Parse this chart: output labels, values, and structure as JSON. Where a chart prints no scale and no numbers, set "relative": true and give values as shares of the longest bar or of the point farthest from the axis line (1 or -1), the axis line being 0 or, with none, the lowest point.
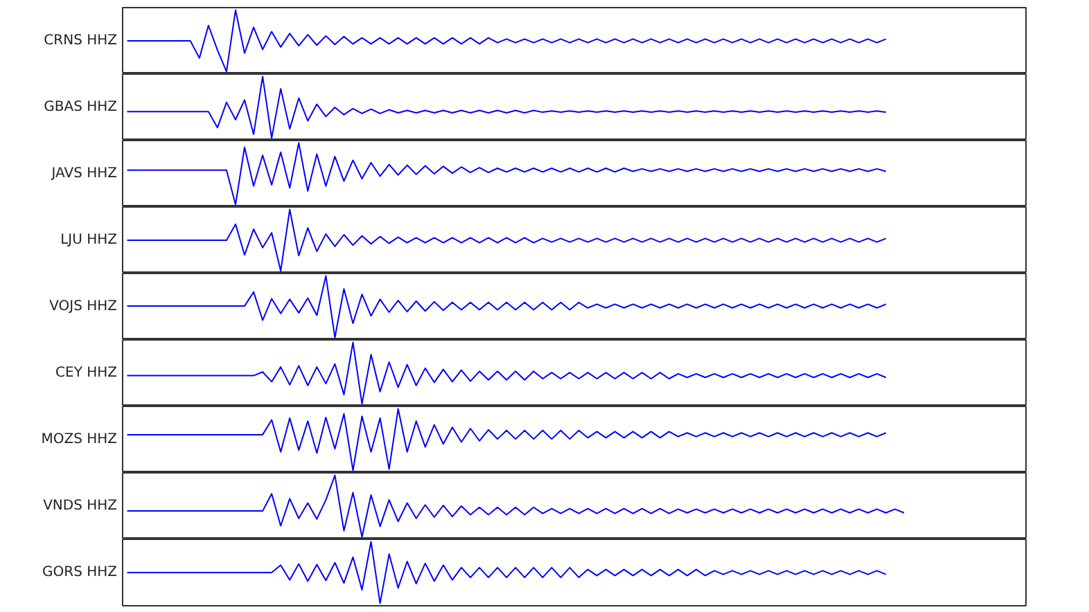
{
  "chart_data": [
    {
      "type": "line",
      "ylabel": "CRNS HHZ",
      "relative": true,
      "color": "#0000ff",
      "categories": [
        null,
        null,
        null,
        null,
        null,
        null,
        null,
        null,
        null,
        null,
        null,
        null,
        null,
        null,
        null,
        null,
        null,
        null,
        null,
        null,
        null,
        null,
        null,
        null,
        null,
        null,
        null,
        null,
        null,
        null,
        null,
        null,
        null,
        null,
        null,
        null,
        null,
        null,
        null,
        null,
        null,
        null,
        null,
        null,
        null,
        null,
        null,
        null,
        null,
        null,
        null,
        null,
        null,
        null,
        null,
        null,
        null,
        null,
        null,
        null,
        null,
        null,
        null,
        null,
        null,
        null,
        null,
        null,
        null,
        null,
        null,
        null,
        null,
        null,
        null,
        null,
        null,
        null,
        null,
        null,
        null,
        null,
        null,
        null,
        null,
        null,
        null,
        null,
        null,
        null,
        null,
        null,
        null,
        null,
        null,
        null,
        null,
        null,
        null,
        null
      ],
      "values": [
        0.5,
        0.5,
        0.5,
        0.5,
        0.5,
        0.5,
        0.5,
        0.5,
        0.22,
        0.75,
        0.35,
        0,
        1,
        0.3,
        0.72,
        0.36,
        0.65,
        0.4,
        0.62,
        0.42,
        0.6,
        0.43,
        0.58,
        0.44,
        0.57,
        0.45,
        0.55,
        0.45,
        0.55,
        0.45,
        0.55,
        0.45,
        0.55,
        0.45,
        0.55,
        0.45,
        0.55,
        0.45,
        0.55,
        0.45,
        0.55,
        0.47,
        0.53,
        0.47,
        0.53,
        0.47,
        0.53,
        0.47,
        0.53,
        0.47,
        0.53,
        0.47,
        0.53,
        0.47,
        0.53,
        0.47,
        0.53,
        0.47,
        0.53,
        0.47,
        0.53,
        0.47,
        0.53,
        0.47,
        0.53,
        0.47,
        0.53,
        0.47,
        0.53,
        0.47,
        0.53,
        0.47,
        0.53,
        0.47,
        0.53,
        0.47,
        0.53,
        0.47,
        0.53,
        0.47,
        0.53,
        0.47,
        0.53,
        0.47,
        0.53,
        null,
        null,
        null,
        null,
        null,
        null,
        null,
        null,
        null,
        null,
        null,
        null,
        null,
        null,
        null
      ]
    },
    {
      "type": "line",
      "ylabel": "GBAS HHZ",
      "relative": true,
      "color": "#0000ff",
      "categories": [
        null,
        null,
        null,
        null,
        null,
        null,
        null,
        null,
        null,
        null,
        null,
        null,
        null,
        null,
        null,
        null,
        null,
        null,
        null,
        null,
        null,
        null,
        null,
        null,
        null,
        null,
        null,
        null,
        null,
        null,
        null,
        null,
        null,
        null,
        null,
        null,
        null,
        null,
        null,
        null,
        null,
        null,
        null,
        null,
        null,
        null,
        null,
        null,
        null,
        null,
        null,
        null,
        null,
        null,
        null,
        null,
        null,
        null,
        null,
        null,
        null,
        null,
        null,
        null,
        null,
        null,
        null,
        null,
        null,
        null,
        null,
        null,
        null,
        null,
        null,
        null,
        null,
        null,
        null,
        null,
        null,
        null,
        null,
        null,
        null,
        null,
        null,
        null,
        null,
        null,
        null,
        null,
        null,
        null,
        null,
        null,
        null,
        null,
        null,
        null
      ],
      "values": [
        0.43,
        0.43,
        0.43,
        0.43,
        0.43,
        0.43,
        0.43,
        0.43,
        0.43,
        0.43,
        0.17,
        0.58,
        0.3,
        0.62,
        0.06,
        1,
        0,
        0.8,
        0.15,
        0.65,
        0.28,
        0.55,
        0.35,
        0.5,
        0.38,
        0.48,
        0.4,
        0.47,
        0.4,
        0.46,
        0.41,
        0.45,
        0.41,
        0.45,
        0.41,
        0.45,
        0.41,
        0.45,
        0.41,
        0.45,
        0.41,
        0.45,
        0.41,
        0.45,
        0.41,
        0.45,
        0.42,
        0.44,
        0.42,
        0.44,
        0.42,
        0.44,
        0.42,
        0.44,
        0.42,
        0.44,
        0.42,
        0.44,
        0.42,
        0.44,
        0.42,
        0.44,
        0.42,
        0.44,
        0.42,
        0.44,
        0.42,
        0.44,
        0.42,
        0.44,
        0.42,
        0.44,
        0.42,
        0.44,
        0.42,
        0.44,
        0.42,
        0.44,
        0.42,
        0.44,
        0.42,
        0.44,
        0.42,
        0.44,
        0.42,
        null,
        null,
        null,
        null,
        null,
        null,
        null,
        null,
        null,
        null,
        null,
        null,
        null,
        null,
        null
      ]
    },
    {
      "type": "line",
      "ylabel": "JAVS HHZ",
      "relative": true,
      "color": "#0000ff",
      "categories": [
        null,
        null,
        null,
        null,
        null,
        null,
        null,
        null,
        null,
        null,
        null,
        null,
        null,
        null,
        null,
        null,
        null,
        null,
        null,
        null,
        null,
        null,
        null,
        null,
        null,
        null,
        null,
        null,
        null,
        null,
        null,
        null,
        null,
        null,
        null,
        null,
        null,
        null,
        null,
        null,
        null,
        null,
        null,
        null,
        null,
        null,
        null,
        null,
        null,
        null,
        null,
        null,
        null,
        null,
        null,
        null,
        null,
        null,
        null,
        null,
        null,
        null,
        null,
        null,
        null,
        null,
        null,
        null,
        null,
        null,
        null,
        null,
        null,
        null,
        null,
        null,
        null,
        null,
        null,
        null,
        null,
        null,
        null,
        null,
        null,
        null,
        null,
        null,
        null,
        null,
        null,
        null,
        null,
        null,
        null,
        null,
        null,
        null,
        null,
        null
      ],
      "values": [
        0.56,
        0.56,
        0.56,
        0.56,
        0.56,
        0.56,
        0.56,
        0.56,
        0.56,
        0.56,
        0.56,
        0.56,
        0,
        0.93,
        0.3,
        0.8,
        0.32,
        0.85,
        0.27,
        1,
        0.22,
        0.82,
        0.3,
        0.78,
        0.38,
        0.72,
        0.42,
        0.68,
        0.46,
        0.65,
        0.48,
        0.64,
        0.49,
        0.63,
        0.5,
        0.62,
        0.51,
        0.61,
        0.52,
        0.6,
        0.52,
        0.59,
        0.53,
        0.59,
        0.53,
        0.59,
        0.53,
        0.59,
        0.53,
        0.59,
        0.53,
        0.59,
        0.53,
        0.59,
        0.53,
        0.59,
        0.54,
        0.58,
        0.54,
        0.58,
        0.54,
        0.58,
        0.54,
        0.58,
        0.54,
        0.58,
        0.54,
        0.58,
        0.54,
        0.58,
        0.54,
        0.58,
        0.54,
        0.58,
        0.54,
        0.58,
        0.54,
        0.58,
        0.54,
        0.58,
        0.54,
        0.58,
        0.54,
        0.58,
        0.54,
        null,
        null,
        null,
        null,
        null,
        null,
        null,
        null,
        null,
        null,
        null,
        null,
        null,
        null,
        null
      ]
    },
    {
      "type": "line",
      "ylabel": "LJU HHZ",
      "relative": true,
      "color": "#0000ff",
      "categories": [
        null,
        null,
        null,
        null,
        null,
        null,
        null,
        null,
        null,
        null,
        null,
        null,
        null,
        null,
        null,
        null,
        null,
        null,
        null,
        null,
        null,
        null,
        null,
        null,
        null,
        null,
        null,
        null,
        null,
        null,
        null,
        null,
        null,
        null,
        null,
        null,
        null,
        null,
        null,
        null,
        null,
        null,
        null,
        null,
        null,
        null,
        null,
        null,
        null,
        null,
        null,
        null,
        null,
        null,
        null,
        null,
        null,
        null,
        null,
        null,
        null,
        null,
        null,
        null,
        null,
        null,
        null,
        null,
        null,
        null,
        null,
        null,
        null,
        null,
        null,
        null,
        null,
        null,
        null,
        null,
        null,
        null,
        null,
        null,
        null,
        null,
        null,
        null,
        null,
        null,
        null,
        null,
        null,
        null,
        null,
        null,
        null,
        null,
        null,
        null
      ],
      "values": [
        0.5,
        0.5,
        0.5,
        0.5,
        0.5,
        0.5,
        0.5,
        0.5,
        0.5,
        0.5,
        0.5,
        0.5,
        0.76,
        0.26,
        0.68,
        0.38,
        0.62,
        0,
        1,
        0.25,
        0.7,
        0.32,
        0.6,
        0.4,
        0.59,
        0.42,
        0.57,
        0.44,
        0.56,
        0.45,
        0.55,
        0.46,
        0.54,
        0.46,
        0.54,
        0.46,
        0.54,
        0.46,
        0.54,
        0.46,
        0.54,
        0.46,
        0.54,
        0.46,
        0.54,
        0.46,
        0.53,
        0.47,
        0.53,
        0.47,
        0.53,
        0.47,
        0.53,
        0.47,
        0.53,
        0.47,
        0.53,
        0.47,
        0.53,
        0.47,
        0.53,
        0.47,
        0.53,
        0.47,
        0.53,
        0.47,
        0.53,
        0.47,
        0.53,
        0.47,
        0.53,
        0.47,
        0.53,
        0.47,
        0.53,
        0.47,
        0.53,
        0.47,
        0.53,
        0.47,
        0.53,
        0.47,
        0.53,
        0.47,
        0.53,
        null,
        null,
        null,
        null,
        null,
        null,
        null,
        null,
        null,
        null,
        null,
        null,
        null,
        null,
        null
      ]
    },
    {
      "type": "line",
      "ylabel": "VOJS HHZ",
      "relative": true,
      "color": "#0000ff",
      "categories": [
        null,
        null,
        null,
        null,
        null,
        null,
        null,
        null,
        null,
        null,
        null,
        null,
        null,
        null,
        null,
        null,
        null,
        null,
        null,
        null,
        null,
        null,
        null,
        null,
        null,
        null,
        null,
        null,
        null,
        null,
        null,
        null,
        null,
        null,
        null,
        null,
        null,
        null,
        null,
        null,
        null,
        null,
        null,
        null,
        null,
        null,
        null,
        null,
        null,
        null,
        null,
        null,
        null,
        null,
        null,
        null,
        null,
        null,
        null,
        null,
        null,
        null,
        null,
        null,
        null,
        null,
        null,
        null,
        null,
        null,
        null,
        null,
        null,
        null,
        null,
        null,
        null,
        null,
        null,
        null,
        null,
        null,
        null,
        null,
        null,
        null,
        null,
        null,
        null,
        null,
        null,
        null,
        null,
        null,
        null,
        null,
        null,
        null,
        null,
        null
      ],
      "values": [
        0.51,
        0.51,
        0.51,
        0.51,
        0.51,
        0.51,
        0.51,
        0.51,
        0.51,
        0.51,
        0.51,
        0.51,
        0.51,
        0.51,
        0.74,
        0.28,
        0.63,
        0.39,
        0.62,
        0.4,
        0.64,
        0.36,
        1,
        0,
        0.79,
        0.23,
        0.7,
        0.35,
        0.62,
        0.41,
        0.6,
        0.42,
        0.59,
        0.43,
        0.58,
        0.44,
        0.57,
        0.45,
        0.57,
        0.45,
        0.57,
        0.45,
        0.57,
        0.45,
        0.57,
        0.45,
        0.57,
        0.45,
        0.57,
        0.45,
        0.57,
        0.48,
        0.54,
        0.48,
        0.54,
        0.48,
        0.54,
        0.48,
        0.54,
        0.48,
        0.54,
        0.48,
        0.54,
        0.48,
        0.54,
        0.48,
        0.54,
        0.48,
        0.54,
        0.48,
        0.54,
        0.48,
        0.54,
        0.48,
        0.54,
        0.48,
        0.54,
        0.48,
        0.54,
        0.48,
        0.54,
        0.48,
        0.54,
        0.48,
        0.54,
        null,
        null,
        null,
        null,
        null,
        null,
        null,
        null,
        null,
        null,
        null,
        null,
        null,
        null,
        null
      ]
    },
    {
      "type": "line",
      "ylabel": "CEY HHZ",
      "relative": true,
      "color": "#0000ff",
      "categories": [
        null,
        null,
        null,
        null,
        null,
        null,
        null,
        null,
        null,
        null,
        null,
        null,
        null,
        null,
        null,
        null,
        null,
        null,
        null,
        null,
        null,
        null,
        null,
        null,
        null,
        null,
        null,
        null,
        null,
        null,
        null,
        null,
        null,
        null,
        null,
        null,
        null,
        null,
        null,
        null,
        null,
        null,
        null,
        null,
        null,
        null,
        null,
        null,
        null,
        null,
        null,
        null,
        null,
        null,
        null,
        null,
        null,
        null,
        null,
        null,
        null,
        null,
        null,
        null,
        null,
        null,
        null,
        null,
        null,
        null,
        null,
        null,
        null,
        null,
        null,
        null,
        null,
        null,
        null,
        null,
        null,
        null,
        null,
        null,
        null,
        null,
        null,
        null,
        null,
        null,
        null,
        null,
        null,
        null,
        null,
        null,
        null,
        null,
        null,
        null
      ],
      "values": [
        0.46,
        0.46,
        0.46,
        0.46,
        0.46,
        0.46,
        0.46,
        0.46,
        0.46,
        0.46,
        0.46,
        0.46,
        0.46,
        0.46,
        0.46,
        0.52,
        0.36,
        0.6,
        0.31,
        0.62,
        0.3,
        0.6,
        0.33,
        0.65,
        0.15,
        1,
        0,
        0.8,
        0.2,
        0.68,
        0.27,
        0.64,
        0.3,
        0.58,
        0.35,
        0.56,
        0.36,
        0.55,
        0.37,
        0.53,
        0.39,
        0.53,
        0.39,
        0.53,
        0.39,
        0.53,
        0.41,
        0.51,
        0.41,
        0.51,
        0.41,
        0.51,
        0.41,
        0.51,
        0.41,
        0.51,
        0.41,
        0.51,
        0.41,
        0.51,
        0.41,
        0.49,
        0.43,
        0.49,
        0.43,
        0.49,
        0.43,
        0.49,
        0.43,
        0.49,
        0.43,
        0.49,
        0.43,
        0.49,
        0.43,
        0.49,
        0.43,
        0.49,
        0.43,
        0.49,
        0.43,
        0.49,
        0.43,
        0.49,
        0.43,
        null,
        null,
        null,
        null,
        null,
        null,
        null,
        null,
        null,
        null,
        null,
        null,
        null,
        null,
        null
      ]
    },
    {
      "type": "line",
      "ylabel": "MOZS HHZ",
      "relative": true,
      "color": "#0000ff",
      "categories": [
        null,
        null,
        null,
        null,
        null,
        null,
        null,
        null,
        null,
        null,
        null,
        null,
        null,
        null,
        null,
        null,
        null,
        null,
        null,
        null,
        null,
        null,
        null,
        null,
        null,
        null,
        null,
        null,
        null,
        null,
        null,
        null,
        null,
        null,
        null,
        null,
        null,
        null,
        null,
        null,
        null,
        null,
        null,
        null,
        null,
        null,
        null,
        null,
        null,
        null,
        null,
        null,
        null,
        null,
        null,
        null,
        null,
        null,
        null,
        null,
        null,
        null,
        null,
        null,
        null,
        null,
        null,
        null,
        null,
        null,
        null,
        null,
        null,
        null,
        null,
        null,
        null,
        null,
        null,
        null,
        null,
        null,
        null,
        null,
        null,
        null,
        null,
        null,
        null,
        null,
        null,
        null,
        null,
        null,
        null,
        null,
        null,
        null,
        null,
        null
      ],
      "values": [
        0.58,
        0.58,
        0.58,
        0.58,
        0.58,
        0.58,
        0.58,
        0.58,
        0.58,
        0.58,
        0.58,
        0.58,
        0.58,
        0.58,
        0.58,
        0.58,
        0.82,
        0.3,
        0.85,
        0.33,
        0.8,
        0.28,
        0.86,
        0.35,
        0.92,
        0,
        0.88,
        0.3,
        0.85,
        0.02,
        1,
        0.3,
        0.8,
        0.38,
        0.74,
        0.43,
        0.7,
        0.46,
        0.68,
        0.48,
        0.66,
        0.51,
        0.65,
        0.51,
        0.65,
        0.51,
        0.65,
        0.51,
        0.65,
        0.51,
        0.65,
        0.53,
        0.63,
        0.53,
        0.63,
        0.53,
        0.63,
        0.53,
        0.63,
        0.53,
        0.63,
        0.55,
        0.61,
        0.55,
        0.61,
        0.55,
        0.61,
        0.55,
        0.61,
        0.55,
        0.61,
        0.55,
        0.61,
        0.55,
        0.61,
        0.55,
        0.61,
        0.55,
        0.61,
        0.55,
        0.61,
        0.55,
        0.61,
        0.55,
        0.61,
        null,
        null,
        null,
        null,
        null,
        null,
        null,
        null,
        null,
        null,
        null,
        null,
        null,
        null,
        null
      ]
    },
    {
      "type": "line",
      "ylabel": "VNDS HHZ",
      "relative": true,
      "color": "#0000ff",
      "categories": [
        null,
        null,
        null,
        null,
        null,
        null,
        null,
        null,
        null,
        null,
        null,
        null,
        null,
        null,
        null,
        null,
        null,
        null,
        null,
        null,
        null,
        null,
        null,
        null,
        null,
        null,
        null,
        null,
        null,
        null,
        null,
        null,
        null,
        null,
        null,
        null,
        null,
        null,
        null,
        null,
        null,
        null,
        null,
        null,
        null,
        null,
        null,
        null,
        null,
        null,
        null,
        null,
        null,
        null,
        null,
        null,
        null,
        null,
        null,
        null,
        null,
        null,
        null,
        null,
        null,
        null,
        null,
        null,
        null,
        null,
        null,
        null,
        null,
        null,
        null,
        null,
        null,
        null,
        null,
        null,
        null,
        null,
        null,
        null,
        null,
        null,
        null,
        null,
        null,
        null,
        null,
        null,
        null,
        null,
        null,
        null,
        null,
        null,
        null,
        null
      ],
      "values": [
        0.42,
        0.42,
        0.42,
        0.42,
        0.42,
        0.42,
        0.42,
        0.42,
        0.42,
        0.42,
        0.42,
        0.42,
        0.42,
        0.42,
        0.42,
        0.42,
        0.7,
        0.18,
        0.62,
        0.3,
        0.55,
        0.29,
        0.6,
        1,
        0.1,
        0.72,
        0,
        0.68,
        0.17,
        0.6,
        0.25,
        0.55,
        0.3,
        0.52,
        0.32,
        0.51,
        0.33,
        0.5,
        0.36,
        0.48,
        0.36,
        0.48,
        0.36,
        0.48,
        0.36,
        0.48,
        0.38,
        0.46,
        0.38,
        0.46,
        0.38,
        0.46,
        0.38,
        0.46,
        0.38,
        0.46,
        0.38,
        0.46,
        0.38,
        0.46,
        0.38,
        0.45,
        0.39,
        0.45,
        0.39,
        0.45,
        0.39,
        0.45,
        0.39,
        0.45,
        0.39,
        0.45,
        0.39,
        0.45,
        0.39,
        0.45,
        0.39,
        0.45,
        0.39,
        0.45,
        0.39,
        0.45,
        0.39,
        0.45,
        0.39,
        0.45,
        0.39,
        null,
        null,
        null,
        null,
        null,
        null,
        null,
        null,
        null,
        null,
        null,
        null,
        null
      ]
    },
    {
      "type": "line",
      "ylabel": "GORS HHZ",
      "relative": true,
      "color": "#0000ff",
      "categories": [
        null,
        null,
        null,
        null,
        null,
        null,
        null,
        null,
        null,
        null,
        null,
        null,
        null,
        null,
        null,
        null,
        null,
        null,
        null,
        null,
        null,
        null,
        null,
        null,
        null,
        null,
        null,
        null,
        null,
        null,
        null,
        null,
        null,
        null,
        null,
        null,
        null,
        null,
        null,
        null,
        null,
        null,
        null,
        null,
        null,
        null,
        null,
        null,
        null,
        null,
        null,
        null,
        null,
        null,
        null,
        null,
        null,
        null,
        null,
        null,
        null,
        null,
        null,
        null,
        null,
        null,
        null,
        null,
        null,
        null,
        null,
        null,
        null,
        null,
        null,
        null,
        null,
        null,
        null,
        null,
        null,
        null,
        null,
        null,
        null,
        null,
        null,
        null,
        null,
        null,
        null,
        null,
        null,
        null,
        null,
        null,
        null,
        null,
        null,
        null
      ],
      "values": [
        0.5,
        0.5,
        0.5,
        0.5,
        0.5,
        0.5,
        0.5,
        0.5,
        0.5,
        0.5,
        0.5,
        0.5,
        0.5,
        0.5,
        0.5,
        0.5,
        0.5,
        0.62,
        0.38,
        0.64,
        0.36,
        0.63,
        0.37,
        0.66,
        0.33,
        0.75,
        0.22,
        1,
        0,
        0.8,
        0.25,
        0.68,
        0.32,
        0.65,
        0.36,
        0.62,
        0.38,
        0.58,
        0.42,
        0.58,
        0.42,
        0.58,
        0.42,
        0.58,
        0.42,
        0.58,
        0.42,
        0.58,
        0.42,
        0.58,
        0.42,
        0.55,
        0.45,
        0.55,
        0.45,
        0.55,
        0.45,
        0.55,
        0.45,
        0.55,
        0.45,
        0.55,
        0.45,
        0.55,
        0.45,
        0.53,
        0.47,
        0.53,
        0.47,
        0.53,
        0.47,
        0.53,
        0.47,
        0.53,
        0.47,
        0.53,
        0.47,
        0.53,
        0.47,
        0.53,
        0.47,
        0.53,
        0.47,
        0.53,
        0.47,
        null,
        null,
        null,
        null,
        null,
        null,
        null,
        null,
        null,
        null,
        null,
        null,
        null,
        null,
        null
      ]
    }
  ]
}
